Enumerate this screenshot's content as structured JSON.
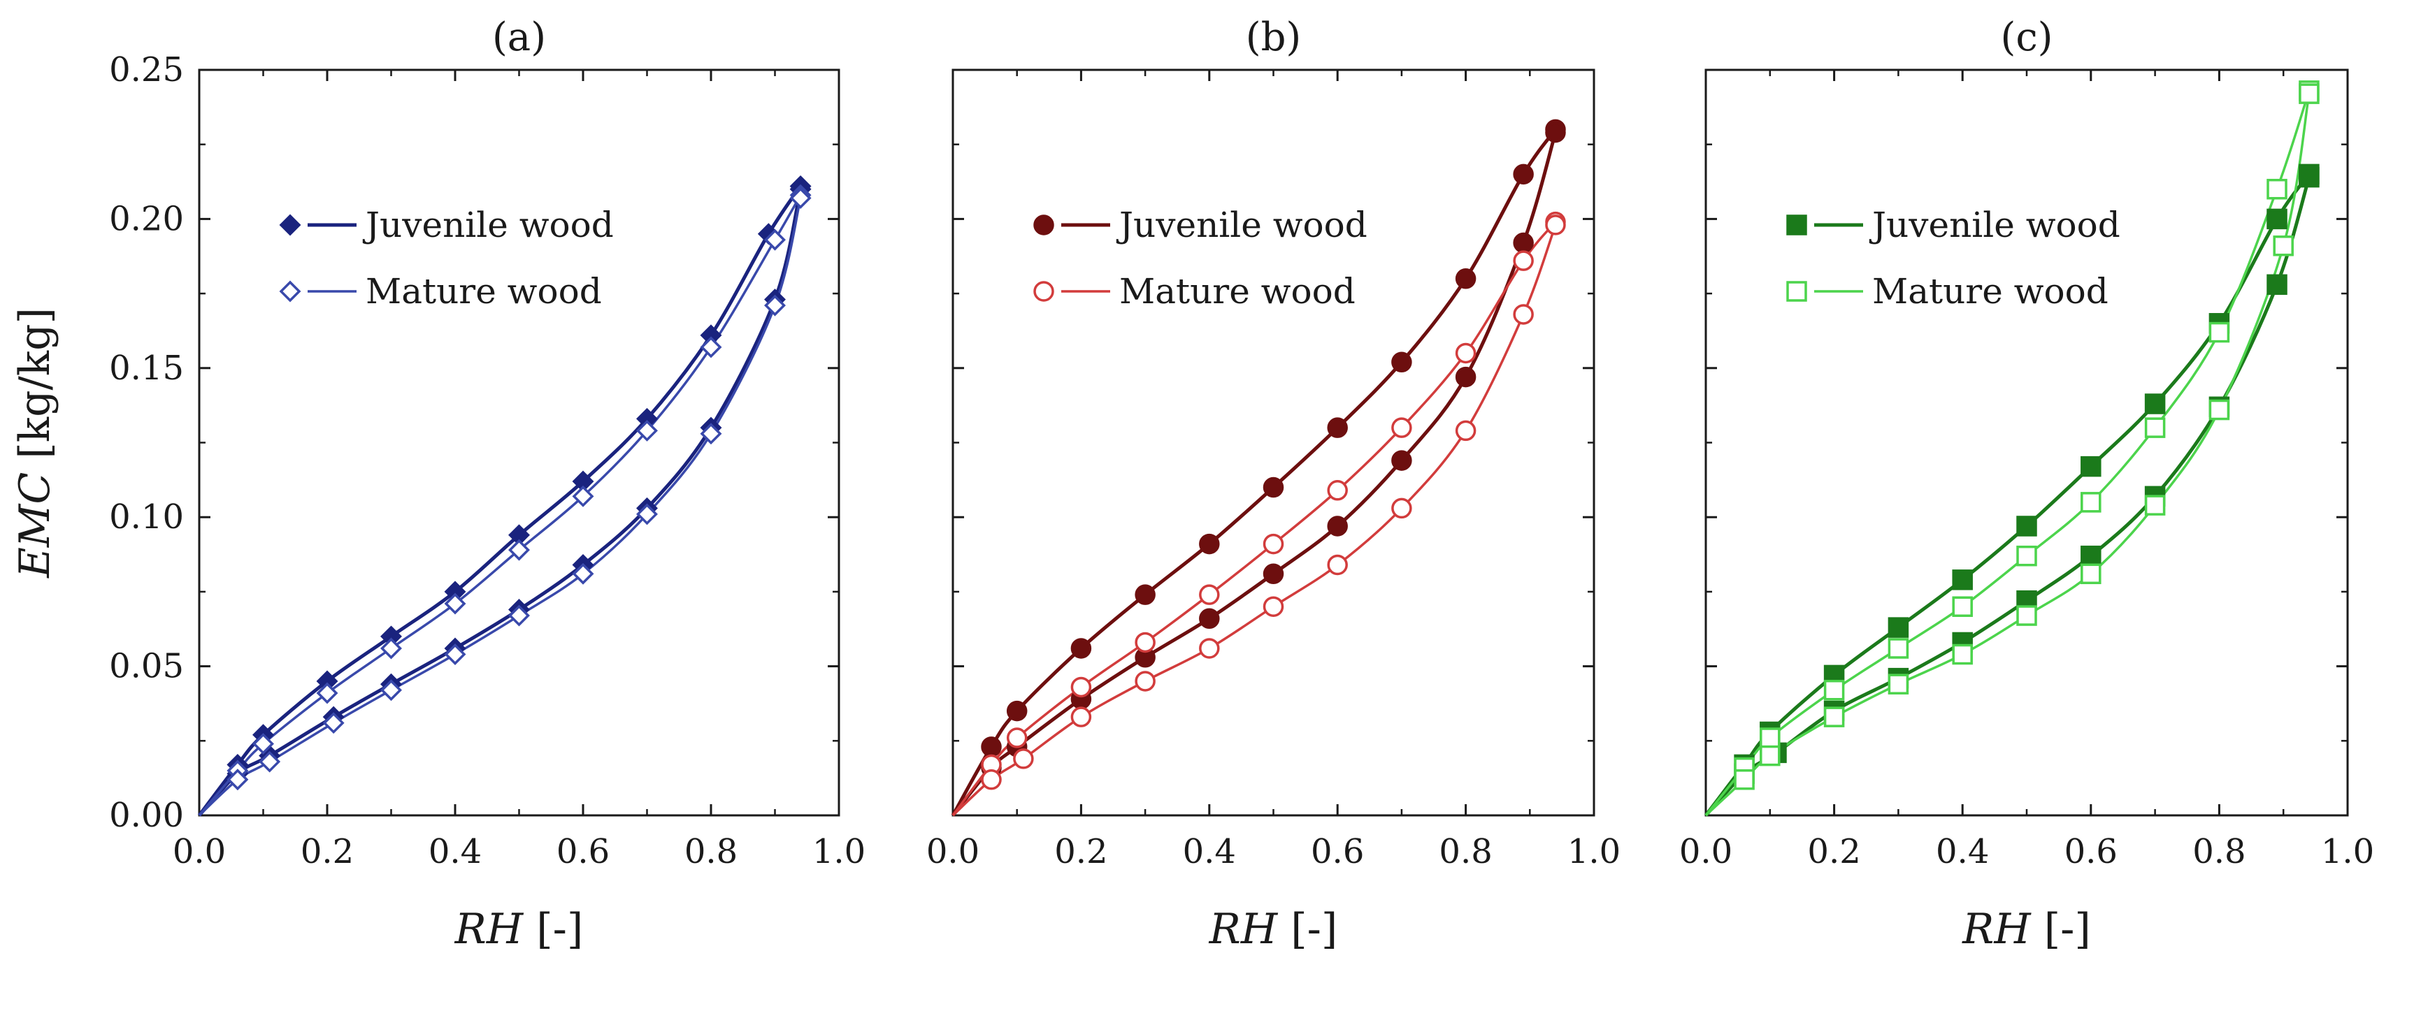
{
  "chart_data": [
    {
      "type": "line",
      "title": "(a)",
      "xlabel_var": "RH",
      "xlabel_unit": "[-]",
      "ylabel_var": "EMC",
      "ylabel_unit": "[kg/kg]",
      "xlim": [
        0.0,
        1.0
      ],
      "ylim": [
        0.0,
        0.25
      ],
      "xticks": [
        0.0,
        0.2,
        0.4,
        0.6,
        0.8,
        1.0
      ],
      "xtick_labels": [
        "0.0",
        "0.2",
        "0.4",
        "0.6",
        "0.8",
        "1.0"
      ],
      "yticks": [
        0.0,
        0.05,
        0.1,
        0.15,
        0.2,
        0.25
      ],
      "ytick_labels": [
        "0.00",
        "0.05",
        "0.10",
        "0.15",
        "0.20",
        "0.25"
      ],
      "legend": [
        {
          "label": "Juvenile wood",
          "marker": "diamond",
          "filled": true,
          "color": "#1a237e"
        },
        {
          "label": "Mature wood",
          "marker": "diamond",
          "filled": false,
          "color": "#3949ab"
        }
      ],
      "series": [
        {
          "name": "Juvenile wood",
          "branch": "desorption",
          "marker": "diamond",
          "filled": true,
          "color": "#1a237e",
          "x": [
            0.06,
            0.1,
            0.2,
            0.3,
            0.4,
            0.5,
            0.6,
            0.7,
            0.8,
            0.89,
            0.94
          ],
          "y": [
            0.017,
            0.027,
            0.045,
            0.06,
            0.075,
            0.094,
            0.112,
            0.133,
            0.161,
            0.195,
            0.211
          ]
        },
        {
          "name": "Juvenile wood",
          "branch": "adsorption",
          "marker": "diamond",
          "filled": true,
          "color": "#1a237e",
          "x": [
            0.06,
            0.11,
            0.21,
            0.3,
            0.4,
            0.5,
            0.6,
            0.7,
            0.8,
            0.9,
            0.94
          ],
          "y": [
            0.014,
            0.02,
            0.033,
            0.044,
            0.056,
            0.069,
            0.084,
            0.103,
            0.13,
            0.173,
            0.21
          ]
        },
        {
          "name": "Mature wood",
          "branch": "desorption",
          "marker": "diamond",
          "filled": false,
          "color": "#3949ab",
          "x": [
            0.06,
            0.1,
            0.2,
            0.3,
            0.4,
            0.5,
            0.6,
            0.7,
            0.8,
            0.9,
            0.94
          ],
          "y": [
            0.015,
            0.024,
            0.041,
            0.056,
            0.071,
            0.089,
            0.107,
            0.129,
            0.157,
            0.193,
            0.208
          ]
        },
        {
          "name": "Mature wood",
          "branch": "adsorption",
          "marker": "diamond",
          "filled": false,
          "color": "#3949ab",
          "x": [
            0.06,
            0.11,
            0.21,
            0.3,
            0.4,
            0.5,
            0.6,
            0.7,
            0.8,
            0.9,
            0.94
          ],
          "y": [
            0.012,
            0.018,
            0.031,
            0.042,
            0.054,
            0.067,
            0.081,
            0.101,
            0.128,
            0.171,
            0.207
          ]
        }
      ]
    },
    {
      "type": "line",
      "title": "(b)",
      "xlabel_var": "RH",
      "xlabel_unit": "[-]",
      "xlim": [
        0.0,
        1.0
      ],
      "ylim": [
        0.0,
        0.25
      ],
      "xticks": [
        0.0,
        0.2,
        0.4,
        0.6,
        0.8,
        1.0
      ],
      "xtick_labels": [
        "0.0",
        "0.2",
        "0.4",
        "0.6",
        "0.8",
        "1.0"
      ],
      "yticks": [
        0.0,
        0.05,
        0.1,
        0.15,
        0.2,
        0.25
      ],
      "legend": [
        {
          "label": "Juvenile wood",
          "marker": "circle",
          "filled": true,
          "color": "#6d0f0f"
        },
        {
          "label": "Mature wood",
          "marker": "circle",
          "filled": false,
          "color": "#d23c3c"
        }
      ],
      "series": [
        {
          "name": "Juvenile wood",
          "branch": "desorption",
          "marker": "circle",
          "filled": true,
          "color": "#6d0f0f",
          "x": [
            0.06,
            0.1,
            0.2,
            0.3,
            0.4,
            0.5,
            0.6,
            0.7,
            0.8,
            0.89,
            0.94
          ],
          "y": [
            0.023,
            0.035,
            0.056,
            0.074,
            0.091,
            0.11,
            0.13,
            0.152,
            0.18,
            0.215,
            0.23
          ]
        },
        {
          "name": "Juvenile wood",
          "branch": "adsorption",
          "marker": "circle",
          "filled": true,
          "color": "#6d0f0f",
          "x": [
            0.06,
            0.1,
            0.2,
            0.3,
            0.4,
            0.5,
            0.6,
            0.7,
            0.8,
            0.89,
            0.94
          ],
          "y": [
            0.016,
            0.023,
            0.039,
            0.053,
            0.066,
            0.081,
            0.097,
            0.119,
            0.147,
            0.192,
            0.229
          ]
        },
        {
          "name": "Mature wood",
          "branch": "desorption",
          "marker": "circle",
          "filled": false,
          "color": "#d23c3c",
          "x": [
            0.06,
            0.1,
            0.2,
            0.3,
            0.4,
            0.5,
            0.6,
            0.7,
            0.8,
            0.89,
            0.94
          ],
          "y": [
            0.017,
            0.026,
            0.043,
            0.058,
            0.074,
            0.091,
            0.109,
            0.13,
            0.155,
            0.186,
            0.199
          ]
        },
        {
          "name": "Mature wood",
          "branch": "adsorption",
          "marker": "circle",
          "filled": false,
          "color": "#d23c3c",
          "x": [
            0.06,
            0.11,
            0.2,
            0.3,
            0.4,
            0.5,
            0.6,
            0.7,
            0.8,
            0.89,
            0.94
          ],
          "y": [
            0.012,
            0.019,
            0.033,
            0.045,
            0.056,
            0.07,
            0.084,
            0.103,
            0.129,
            0.168,
            0.198
          ]
        }
      ]
    },
    {
      "type": "line",
      "title": "(c)",
      "xlabel_var": "RH",
      "xlabel_unit": "[-]",
      "xlim": [
        0.0,
        1.0
      ],
      "ylim": [
        0.0,
        0.25
      ],
      "xticks": [
        0.0,
        0.2,
        0.4,
        0.6,
        0.8,
        1.0
      ],
      "xtick_labels": [
        "0.0",
        "0.2",
        "0.4",
        "0.6",
        "0.8",
        "1.0"
      ],
      "yticks": [
        0.0,
        0.05,
        0.1,
        0.15,
        0.2,
        0.25
      ],
      "legend": [
        {
          "label": "Juvenile wood",
          "marker": "square",
          "filled": true,
          "color": "#1b7a1b"
        },
        {
          "label": "Mature wood",
          "marker": "square",
          "filled": false,
          "color": "#4cd44c"
        }
      ],
      "series": [
        {
          "name": "Juvenile wood",
          "branch": "desorption",
          "marker": "square",
          "filled": true,
          "color": "#1b7a1b",
          "x": [
            0.06,
            0.1,
            0.2,
            0.3,
            0.4,
            0.5,
            0.6,
            0.7,
            0.8,
            0.89,
            0.94
          ],
          "y": [
            0.017,
            0.028,
            0.047,
            0.063,
            0.079,
            0.097,
            0.117,
            0.138,
            0.165,
            0.2,
            0.215
          ]
        },
        {
          "name": "Juvenile wood",
          "branch": "adsorption",
          "marker": "square",
          "filled": true,
          "color": "#1b7a1b",
          "x": [
            0.06,
            0.11,
            0.2,
            0.3,
            0.4,
            0.5,
            0.6,
            0.7,
            0.8,
            0.89,
            0.94
          ],
          "y": [
            0.014,
            0.021,
            0.035,
            0.046,
            0.058,
            0.072,
            0.087,
            0.107,
            0.137,
            0.178,
            0.214
          ]
        },
        {
          "name": "Mature wood",
          "branch": "desorption",
          "marker": "square",
          "filled": false,
          "color": "#4cd44c",
          "x": [
            0.06,
            0.1,
            0.2,
            0.3,
            0.4,
            0.5,
            0.6,
            0.7,
            0.8,
            0.89,
            0.94
          ],
          "y": [
            0.016,
            0.026,
            0.042,
            0.056,
            0.07,
            0.087,
            0.105,
            0.13,
            0.162,
            0.21,
            0.243
          ]
        },
        {
          "name": "Mature wood",
          "branch": "adsorption",
          "marker": "square",
          "filled": false,
          "color": "#4cd44c",
          "x": [
            0.06,
            0.1,
            0.2,
            0.3,
            0.4,
            0.5,
            0.6,
            0.7,
            0.8,
            0.9,
            0.94
          ],
          "y": [
            0.012,
            0.02,
            0.033,
            0.044,
            0.054,
            0.067,
            0.081,
            0.104,
            0.136,
            0.191,
            0.242
          ]
        }
      ]
    }
  ]
}
